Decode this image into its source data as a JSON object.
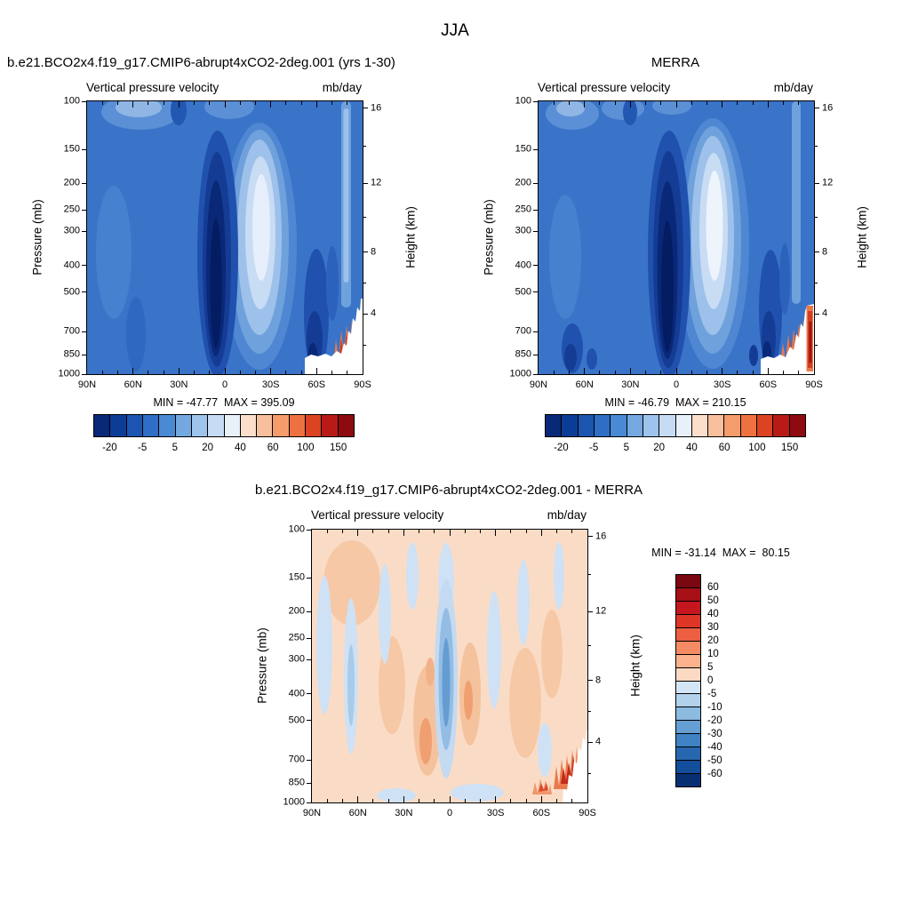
{
  "figure": {
    "title": "JJA"
  },
  "panels": {
    "model": {
      "title": "b.e21.BCO2x4.f19_g17.CMIP6-abrupt4xCO2-2deg.001 (yrs 1-30)",
      "field_label": "Vertical pressure velocity",
      "units": "mb/day",
      "stats": "MIN = -47.77  MAX = 395.09"
    },
    "merra": {
      "title": "MERRA",
      "field_label": "Vertical pressure velocity",
      "units": "mb/day",
      "stats": "MIN = -46.79  MAX = 210.15"
    },
    "diff": {
      "title": "b.e21.BCO2x4.f19_g17.CMIP6-abrupt4xCO2-2deg.001 - MERRA",
      "field_label": "Vertical pressure velocity",
      "units": "mb/day",
      "stats": "MIN = -31.14  MAX =  80.15"
    }
  },
  "axes": {
    "pressure": {
      "label": "Pressure (mb)",
      "ticks": [
        {
          "v": "100",
          "f": 0.0
        },
        {
          "v": "150",
          "f": 0.176
        },
        {
          "v": "200",
          "f": 0.301
        },
        {
          "v": "250",
          "f": 0.398
        },
        {
          "v": "300",
          "f": 0.477
        },
        {
          "v": "400",
          "f": 0.602
        },
        {
          "v": "500",
          "f": 0.699
        },
        {
          "v": "700",
          "f": 0.845
        },
        {
          "v": "850",
          "f": 0.929
        },
        {
          "v": "1000",
          "f": 1.0
        }
      ]
    },
    "height": {
      "label": "Height (km)",
      "ticks": [
        {
          "v": "16",
          "f": 0.026
        },
        {
          "v": "12",
          "f": 0.3
        },
        {
          "v": "8",
          "f": 0.553
        },
        {
          "v": "4",
          "f": 0.78
        }
      ],
      "minor": [
        0.163,
        0.425,
        0.666,
        0.895
      ]
    },
    "latitude": {
      "ticks": [
        {
          "v": "90N",
          "f": 0.0
        },
        {
          "v": "60N",
          "f": 0.1667
        },
        {
          "v": "30N",
          "f": 0.3333
        },
        {
          "v": "0",
          "f": 0.5
        },
        {
          "v": "30S",
          "f": 0.6667
        },
        {
          "v": "60S",
          "f": 0.8333
        },
        {
          "v": "90S",
          "f": 1.0
        }
      ]
    }
  },
  "colorbar_linear": {
    "label_mode": "odd",
    "colors": [
      "#082878",
      "#0c3d96",
      "#1b55b0",
      "#2f6ec4",
      "#4a89d4",
      "#73a8e0",
      "#9cc4ec",
      "#c6dcf4",
      "#e8f0fa",
      "#fbdfcc",
      "#f8bf9c",
      "#f49c6c",
      "#ee7240",
      "#dc4323",
      "#b81b15",
      "#8c0a10"
    ],
    "labels": [
      "-20",
      "-5",
      "5",
      "20",
      "40",
      "60",
      "100",
      "150"
    ]
  },
  "colorbar_diff": {
    "label_mode": "all",
    "colors": [
      "#7a0810",
      "#a50f15",
      "#c4161c",
      "#dd3627",
      "#ec5f41",
      "#f58a64",
      "#f9b28c",
      "#fcd9c2",
      "#d4e6f5",
      "#b2d2ec",
      "#8cbbe0",
      "#649ed2",
      "#3f83c4",
      "#2767b0",
      "#124e9a",
      "#082f72"
    ],
    "labels": [
      "60",
      "50",
      "40",
      "30",
      "20",
      "10",
      "5",
      "0",
      "-5",
      "-10",
      "-20",
      "-30",
      "-40",
      "-50",
      "-60"
    ]
  },
  "chart_data": [
    {
      "type": "heatmap",
      "subtype": "filled-contour latitude-pressure section",
      "season": "JJA",
      "title": "b.e21.BCO2x4.f19_g17.CMIP6-abrupt4xCO2-2deg.001 (yrs 1-30)",
      "field": "Vertical pressure velocity",
      "units": "mb/day",
      "x_axis": {
        "direction": "90N (left) to 90S (right)",
        "ticks": [
          "90N",
          "60N",
          "30N",
          "0",
          "30S",
          "60S",
          "90S"
        ]
      },
      "y_axis_left": {
        "label": "Pressure (mb)",
        "scale": "log",
        "ticks": [
          100,
          150,
          200,
          250,
          300,
          400,
          500,
          700,
          850,
          1000
        ]
      },
      "y_axis_right": {
        "label": "Height (km)",
        "ticks": [
          16,
          12,
          8,
          4
        ]
      },
      "min": -47.77,
      "max": 395.09,
      "contour_level_labels": [
        -20,
        -5,
        5,
        20,
        40,
        60,
        100,
        150
      ],
      "features": [
        "deep dark-blue ascent band (< -20 mb/day) near 5-10N through the whole troposphere",
        "broad pale-blue weak-subsidence column (5-20 mb/day) near 10-30S",
        "medium blue (-5 to 5 mb/day) over most of the section",
        "orange/red pockets (> 40 mb/day) on the Antarctic slope near 70-85S below 700 mb",
        "white terrain mask over Antarctica in the bottom-right corner"
      ]
    },
    {
      "type": "heatmap",
      "subtype": "filled-contour latitude-pressure section",
      "season": "JJA",
      "title": "MERRA",
      "field": "Vertical pressure velocity",
      "units": "mb/day",
      "x_axis": {
        "direction": "90N (left) to 90S (right)",
        "ticks": [
          "90N",
          "60N",
          "30N",
          "0",
          "30S",
          "60S",
          "90S"
        ]
      },
      "y_axis_left": {
        "label": "Pressure (mb)",
        "scale": "log",
        "ticks": [
          100,
          150,
          200,
          250,
          300,
          400,
          500,
          700,
          850,
          1000
        ]
      },
      "y_axis_right": {
        "label": "Height (km)",
        "ticks": [
          16,
          12,
          8,
          4
        ]
      },
      "min": -46.79,
      "max": 210.15,
      "contour_level_labels": [
        -20,
        -5,
        5,
        20,
        40,
        60,
        100,
        150
      ],
      "features": [
        "same structure as model panel: dark ascent band near 5-10N, pale subsidence band near 10-30S",
        "dark low-level blobs near 60-75N and 60-70S",
        "narrow vertical red streak (> 60 mb/day) at the far right edge near 85-90S below 700 mb",
        "white terrain mask over Antarctica in the bottom-right corner"
      ]
    },
    {
      "type": "heatmap",
      "subtype": "filled-contour latitude-pressure difference section",
      "season": "JJA",
      "title": "b.e21.BCO2x4.f19_g17.CMIP6-abrupt4xCO2-2deg.001 - MERRA",
      "field": "Vertical pressure velocity",
      "units": "mb/day",
      "x_axis": {
        "direction": "90N (left) to 90S (right)",
        "ticks": [
          "90N",
          "60N",
          "30N",
          "0",
          "30S",
          "60S",
          "90S"
        ]
      },
      "y_axis_left": {
        "label": "Pressure (mb)",
        "scale": "log",
        "ticks": [
          100,
          150,
          200,
          250,
          300,
          400,
          500,
          700,
          850,
          1000
        ]
      },
      "y_axis_right": {
        "label": "Height (km)",
        "ticks": [
          16,
          12,
          8,
          4
        ]
      },
      "min": -31.14,
      "max": 80.15,
      "contour_level_labels": [
        60,
        50,
        40,
        30,
        20,
        10,
        5,
        0,
        -5,
        -10,
        -20,
        -30,
        -40,
        -50,
        -60
      ],
      "features": [
        "mostly pale peach (0 to 5 mb/day) background",
        "blue vertical band (-10 to -30 mb/day) just north of the equator, 200-850 mb",
        "several faint light-blue vertical streaks at high northern and southern latitudes",
        "light orange patches (5-20 mb/day) near 10-20N and 10-20S at low-mid levels",
        "small red/orange spikes near 60-80S around 850 mb and white Antarctic terrain mask at bottom right"
      ]
    }
  ]
}
